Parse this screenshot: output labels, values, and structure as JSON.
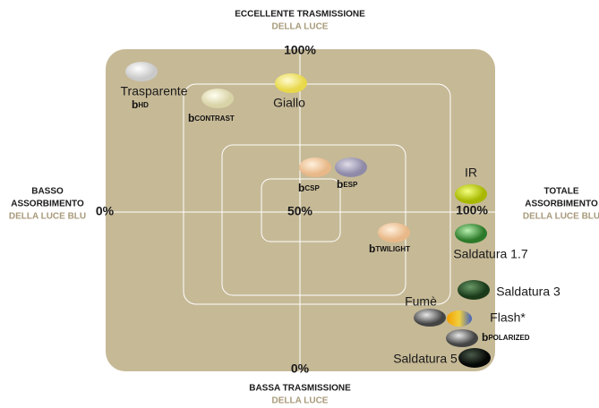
{
  "axes": {
    "top": {
      "lines": [
        "ECCELLENTE TRASMISSIONE",
        "DELLA LUCE"
      ],
      "value": "100%"
    },
    "bottom": {
      "lines": [
        "BASSA TRASMISSIONE",
        "DELLA LUCE"
      ],
      "value": "0%"
    },
    "left": {
      "lines": [
        "BASSO",
        "ASSORBIMENTO",
        "DELLA LUCE BLU"
      ],
      "value": "0%"
    },
    "right": {
      "lines": [
        "TOTALE",
        "ASSORBIMENTO",
        "DELLA LUCE BLU"
      ],
      "value": "100%"
    },
    "center": "50%"
  },
  "lenses": {
    "trasparente": "Trasparente",
    "hd": "HD",
    "giallo": "Giallo",
    "contrast": "CONTRAST",
    "csp": "CSP",
    "esp": "ESP",
    "ir": "IR",
    "twilight": "TWILIGHT",
    "saldatura17": "Saldatura 1.7",
    "saldatura3": "Saldatura 3",
    "fume": "Fumè",
    "flash": "Flash*",
    "polarized": "POLARIZED",
    "saldatura5": "Saldatura 5"
  }
}
